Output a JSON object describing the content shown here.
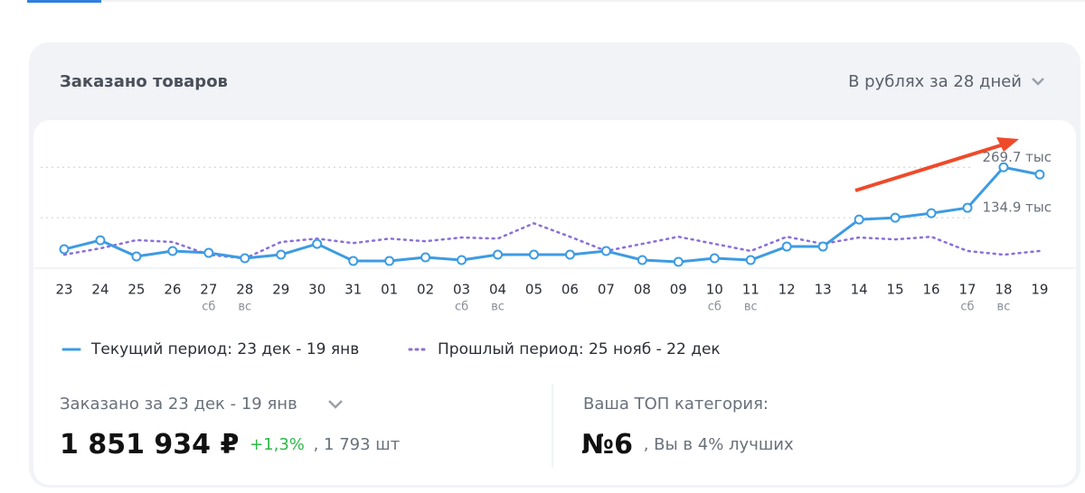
{
  "header": {
    "title": "Заказано товаров",
    "period_selector": "В рублях за 28 дней"
  },
  "chart_data": {
    "type": "line",
    "categories": [
      "23",
      "24",
      "25",
      "26",
      "27",
      "28",
      "29",
      "30",
      "31",
      "01",
      "02",
      "03",
      "04",
      "05",
      "06",
      "07",
      "08",
      "09",
      "10",
      "11",
      "12",
      "13",
      "14",
      "15",
      "16",
      "17",
      "18",
      "19"
    ],
    "day_labels": [
      null,
      null,
      null,
      null,
      "сб",
      "вс",
      null,
      null,
      null,
      null,
      null,
      "сб",
      "вс",
      null,
      null,
      null,
      null,
      null,
      "сб",
      "вс",
      null,
      null,
      null,
      null,
      null,
      "сб",
      "вс",
      null
    ],
    "series": [
      {
        "name": "Текущий период: 23 дек - 19 янв",
        "color": "#3d9be3",
        "style": "solid",
        "values": [
          50.6,
          74.6,
          31.3,
          45.8,
          40.9,
          26.5,
          36.1,
          65,
          19.3,
          19.3,
          28.9,
          21.7,
          36.1,
          36.1,
          36.1,
          45.8,
          21.7,
          16.9,
          26.5,
          21.7,
          57.8,
          57.8,
          130,
          134.9,
          146.9,
          161.3,
          269.7,
          250.4
        ]
      },
      {
        "name": "Прошлый период: 25 нояб - 22 дек",
        "color": "#8a6fd8",
        "style": "dotted",
        "values": [
          36,
          53,
          75,
          70,
          36,
          26,
          70,
          79,
          67,
          79,
          72,
          82,
          79,
          120,
          84,
          46,
          65,
          84,
          65,
          46,
          84,
          65,
          82,
          77,
          84,
          46,
          36,
          46
        ]
      }
    ],
    "ylim": [
      0,
      350
    ],
    "yticks": [
      {
        "value": 134.9,
        "label": "134.9 тыс"
      },
      {
        "value": 269.7,
        "label": "269.7 тыс"
      }
    ],
    "grid": true
  },
  "summary": {
    "ordered_label": "Заказано за 23 дек - 19 янв",
    "amount": "1 851 934 ₽",
    "change": "+1,3%",
    "units": ", 1 793 шт",
    "top_label": "Ваша ТОП категория:",
    "top_rank": "№6",
    "top_note": ", Вы в 4% лучших"
  }
}
